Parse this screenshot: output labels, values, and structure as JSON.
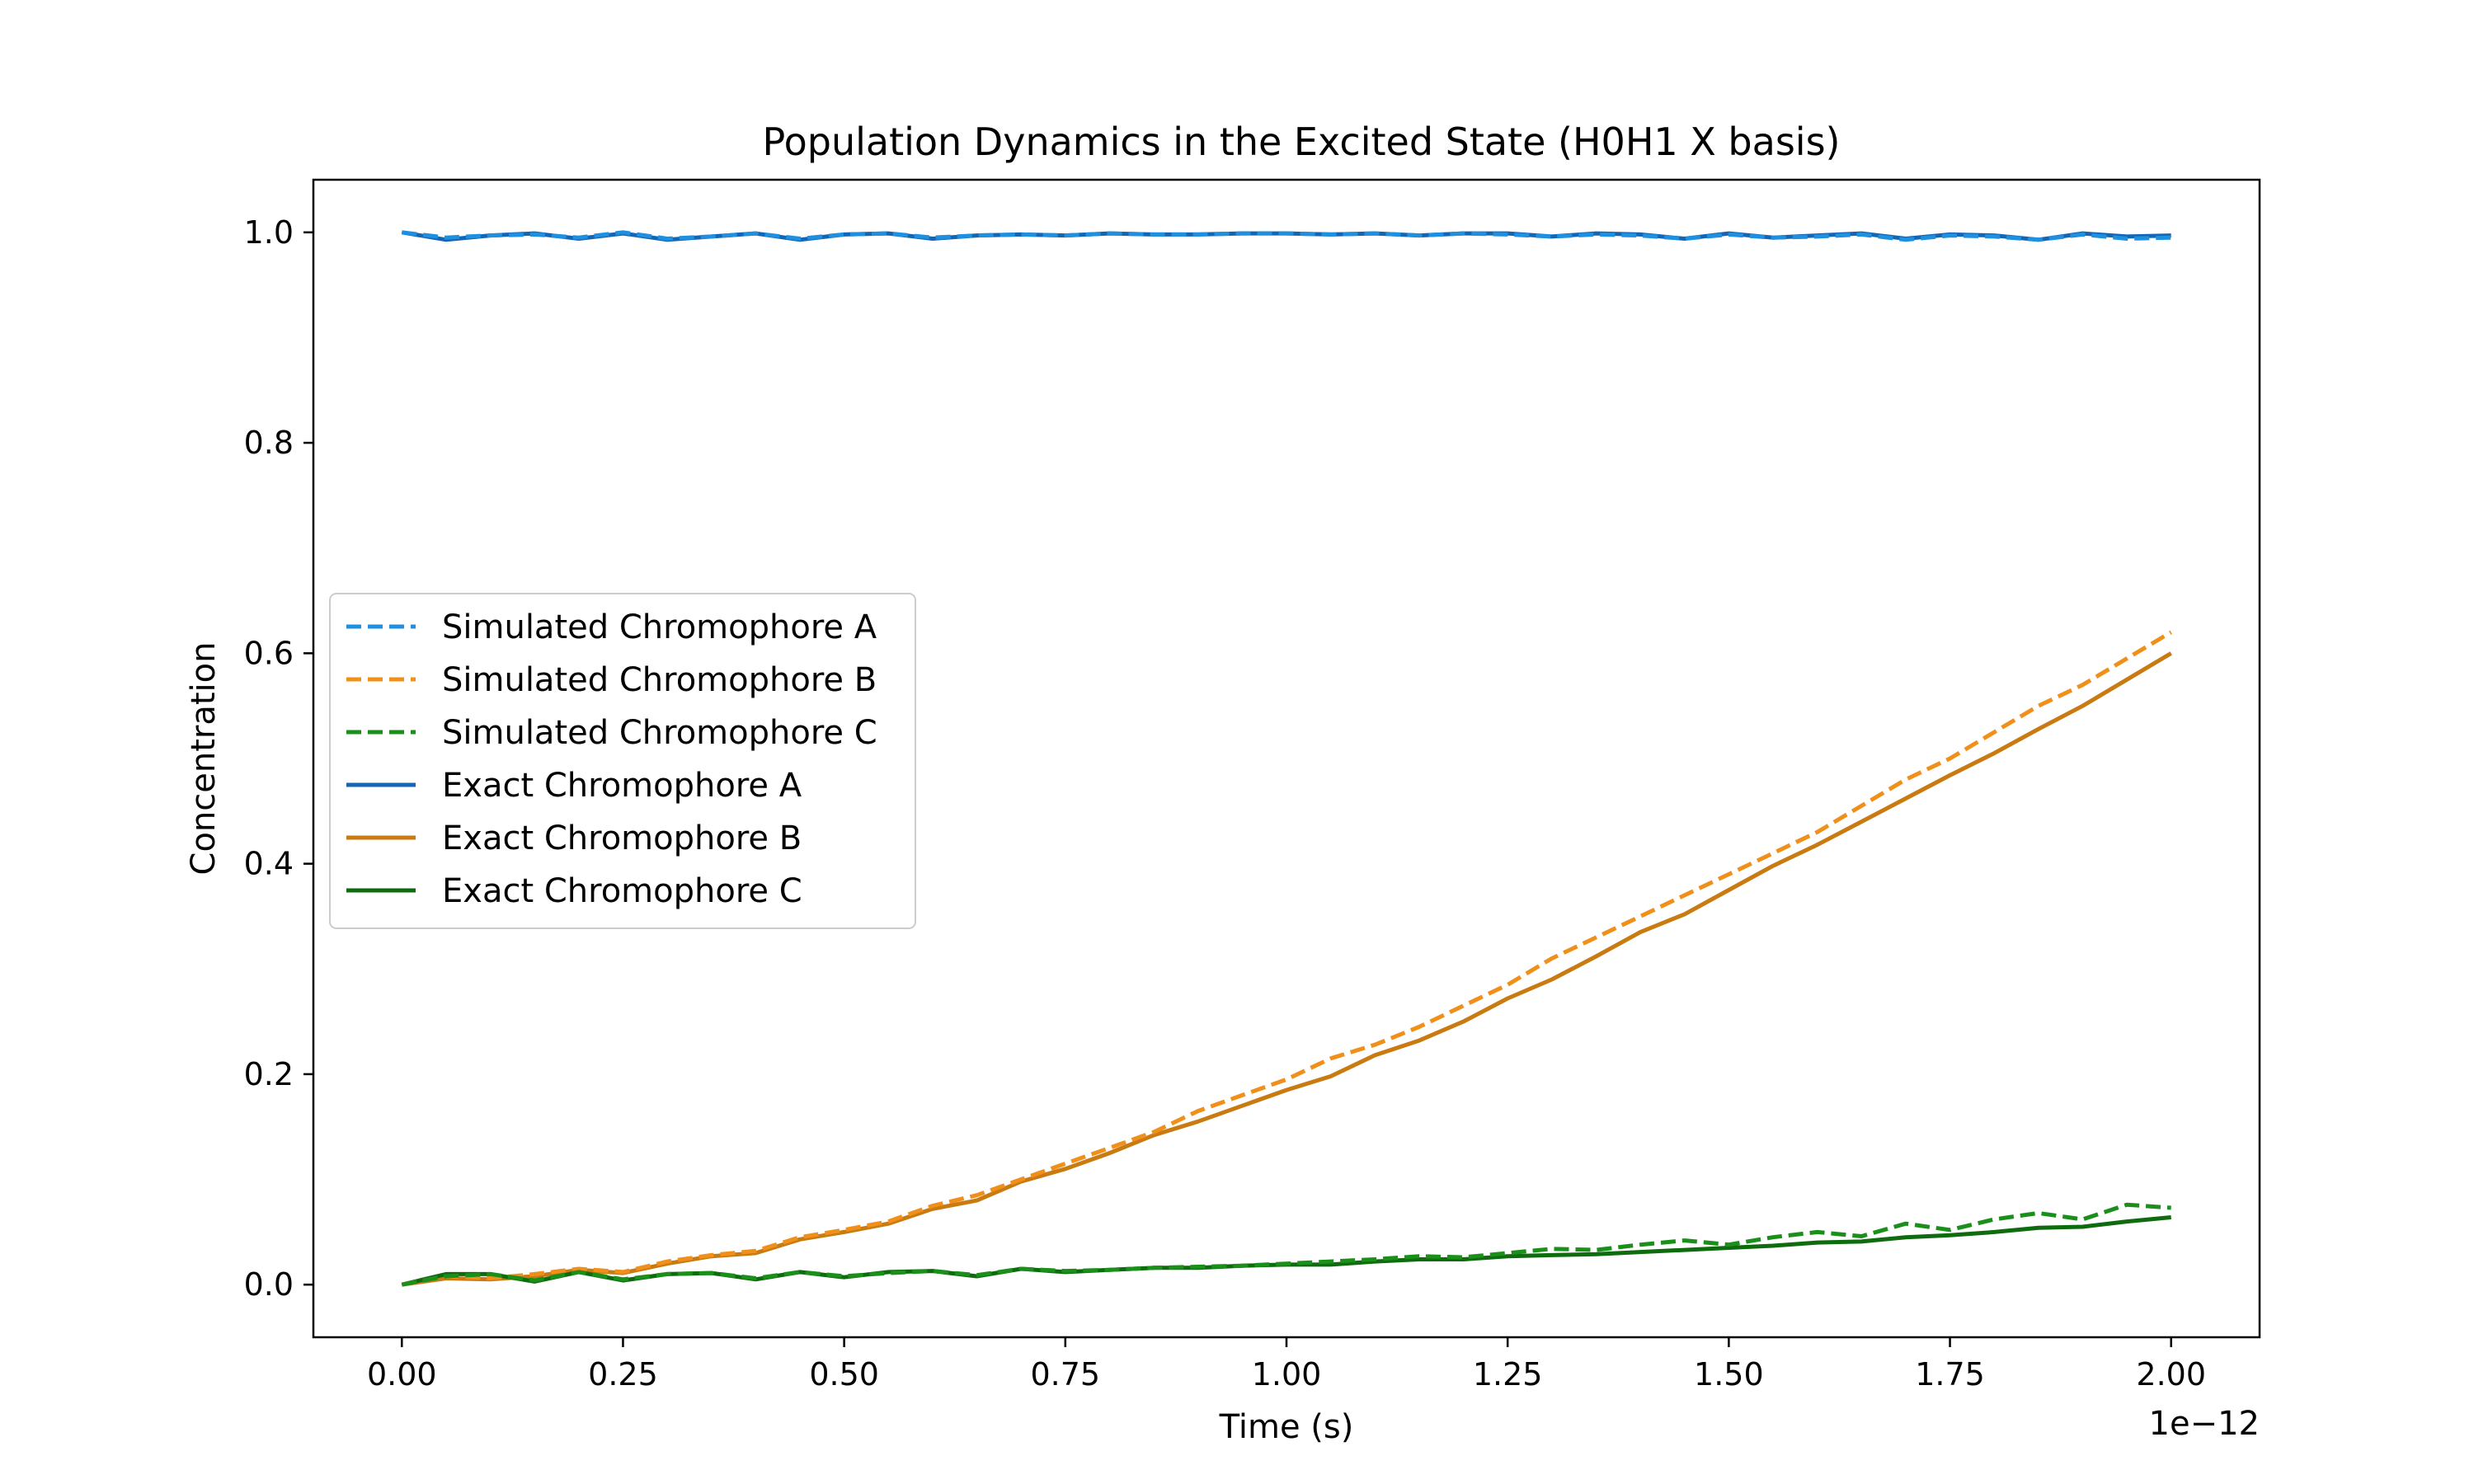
{
  "chart_data": {
    "type": "line",
    "title": "Population Dynamics in the Excited State (H0H1 X basis)",
    "xlabel": "Time (s)",
    "ylabel": "Concentration",
    "x_offset_label": "1e−12",
    "xlim": [
      -0.1,
      2.1
    ],
    "ylim": [
      -0.05,
      1.05
    ],
    "x_ticks": [
      0.0,
      0.25,
      0.5,
      0.75,
      1.0,
      1.25,
      1.5,
      1.75,
      2.0
    ],
    "x_tick_labels": [
      "0.00",
      "0.25",
      "0.50",
      "0.75",
      "1.00",
      "1.25",
      "1.50",
      "1.75",
      "2.00"
    ],
    "y_ticks": [
      0.0,
      0.2,
      0.4,
      0.6,
      0.8,
      1.0
    ],
    "y_tick_labels": [
      "0.0",
      "0.2",
      "0.4",
      "0.6",
      "0.8",
      "1.0"
    ],
    "grid": false,
    "legend_position": "center-left",
    "x": [
      0.0,
      0.05,
      0.1,
      0.15,
      0.2,
      0.25,
      0.3,
      0.35,
      0.4,
      0.45,
      0.5,
      0.55,
      0.6,
      0.65,
      0.7,
      0.75,
      0.8,
      0.85,
      0.9,
      0.95,
      1.0,
      1.05,
      1.1,
      1.15,
      1.2,
      1.25,
      1.3,
      1.35,
      1.4,
      1.45,
      1.5,
      1.55,
      1.6,
      1.65,
      1.7,
      1.75,
      1.8,
      1.85,
      1.9,
      1.95,
      2.0
    ],
    "series": [
      {
        "name": "Simulated Chromophore A",
        "color": "#1f8fe0",
        "dash": true,
        "values": [
          1.0,
          0.995,
          0.997,
          0.998,
          0.995,
          1.0,
          0.994,
          0.996,
          0.999,
          0.994,
          0.998,
          0.999,
          0.995,
          0.997,
          0.998,
          0.997,
          0.999,
          0.998,
          0.998,
          0.999,
          0.999,
          0.998,
          0.999,
          0.997,
          0.999,
          0.998,
          0.996,
          0.998,
          0.997,
          0.994,
          0.998,
          0.995,
          0.996,
          0.998,
          0.993,
          0.997,
          0.996,
          0.993,
          0.998,
          0.994,
          0.995
        ]
      },
      {
        "name": "Simulated Chromophore B",
        "color": "#f0901a",
        "dash": true,
        "values": [
          0.0,
          0.008,
          0.006,
          0.01,
          0.015,
          0.012,
          0.022,
          0.028,
          0.032,
          0.045,
          0.052,
          0.06,
          0.075,
          0.085,
          0.1,
          0.115,
          0.13,
          0.145,
          0.165,
          0.18,
          0.195,
          0.215,
          0.228,
          0.245,
          0.265,
          0.285,
          0.31,
          0.33,
          0.35,
          0.37,
          0.39,
          0.41,
          0.43,
          0.455,
          0.48,
          0.5,
          0.525,
          0.55,
          0.57,
          0.595,
          0.62
        ]
      },
      {
        "name": "Simulated Chromophore C",
        "color": "#1a8f1a",
        "dash": true,
        "values": [
          0.0,
          0.008,
          0.01,
          0.004,
          0.012,
          0.005,
          0.01,
          0.011,
          0.006,
          0.012,
          0.008,
          0.011,
          0.013,
          0.009,
          0.015,
          0.013,
          0.014,
          0.016,
          0.017,
          0.018,
          0.02,
          0.022,
          0.024,
          0.027,
          0.026,
          0.03,
          0.034,
          0.033,
          0.038,
          0.042,
          0.038,
          0.045,
          0.05,
          0.046,
          0.058,
          0.052,
          0.062,
          0.068,
          0.062,
          0.076,
          0.073
        ]
      },
      {
        "name": "Exact Chromophore A",
        "color": "#1565b5",
        "dash": false,
        "values": [
          1.0,
          0.993,
          0.997,
          0.999,
          0.994,
          0.999,
          0.993,
          0.996,
          0.999,
          0.993,
          0.998,
          0.999,
          0.994,
          0.997,
          0.998,
          0.997,
          0.999,
          0.998,
          0.998,
          0.999,
          0.999,
          0.998,
          0.999,
          0.997,
          0.999,
          0.999,
          0.996,
          0.999,
          0.998,
          0.994,
          0.999,
          0.995,
          0.997,
          0.999,
          0.994,
          0.998,
          0.997,
          0.993,
          0.999,
          0.996,
          0.997
        ]
      },
      {
        "name": "Exact Chromophore B",
        "color": "#c97a10",
        "dash": false,
        "values": [
          0.0,
          0.006,
          0.005,
          0.008,
          0.014,
          0.011,
          0.02,
          0.027,
          0.03,
          0.043,
          0.05,
          0.058,
          0.072,
          0.08,
          0.098,
          0.11,
          0.125,
          0.142,
          0.155,
          0.17,
          0.185,
          0.198,
          0.218,
          0.232,
          0.25,
          0.272,
          0.29,
          0.312,
          0.335,
          0.352,
          0.375,
          0.398,
          0.418,
          0.44,
          0.462,
          0.484,
          0.505,
          0.528,
          0.55,
          0.575,
          0.6
        ]
      },
      {
        "name": "Exact Chromophore C",
        "color": "#0e6b0e",
        "dash": false,
        "values": [
          0.0,
          0.01,
          0.01,
          0.003,
          0.012,
          0.004,
          0.01,
          0.011,
          0.005,
          0.012,
          0.007,
          0.012,
          0.013,
          0.008,
          0.015,
          0.012,
          0.014,
          0.016,
          0.016,
          0.018,
          0.019,
          0.019,
          0.022,
          0.024,
          0.024,
          0.027,
          0.028,
          0.029,
          0.031,
          0.033,
          0.035,
          0.037,
          0.04,
          0.041,
          0.045,
          0.047,
          0.05,
          0.054,
          0.055,
          0.06,
          0.064
        ]
      }
    ]
  }
}
